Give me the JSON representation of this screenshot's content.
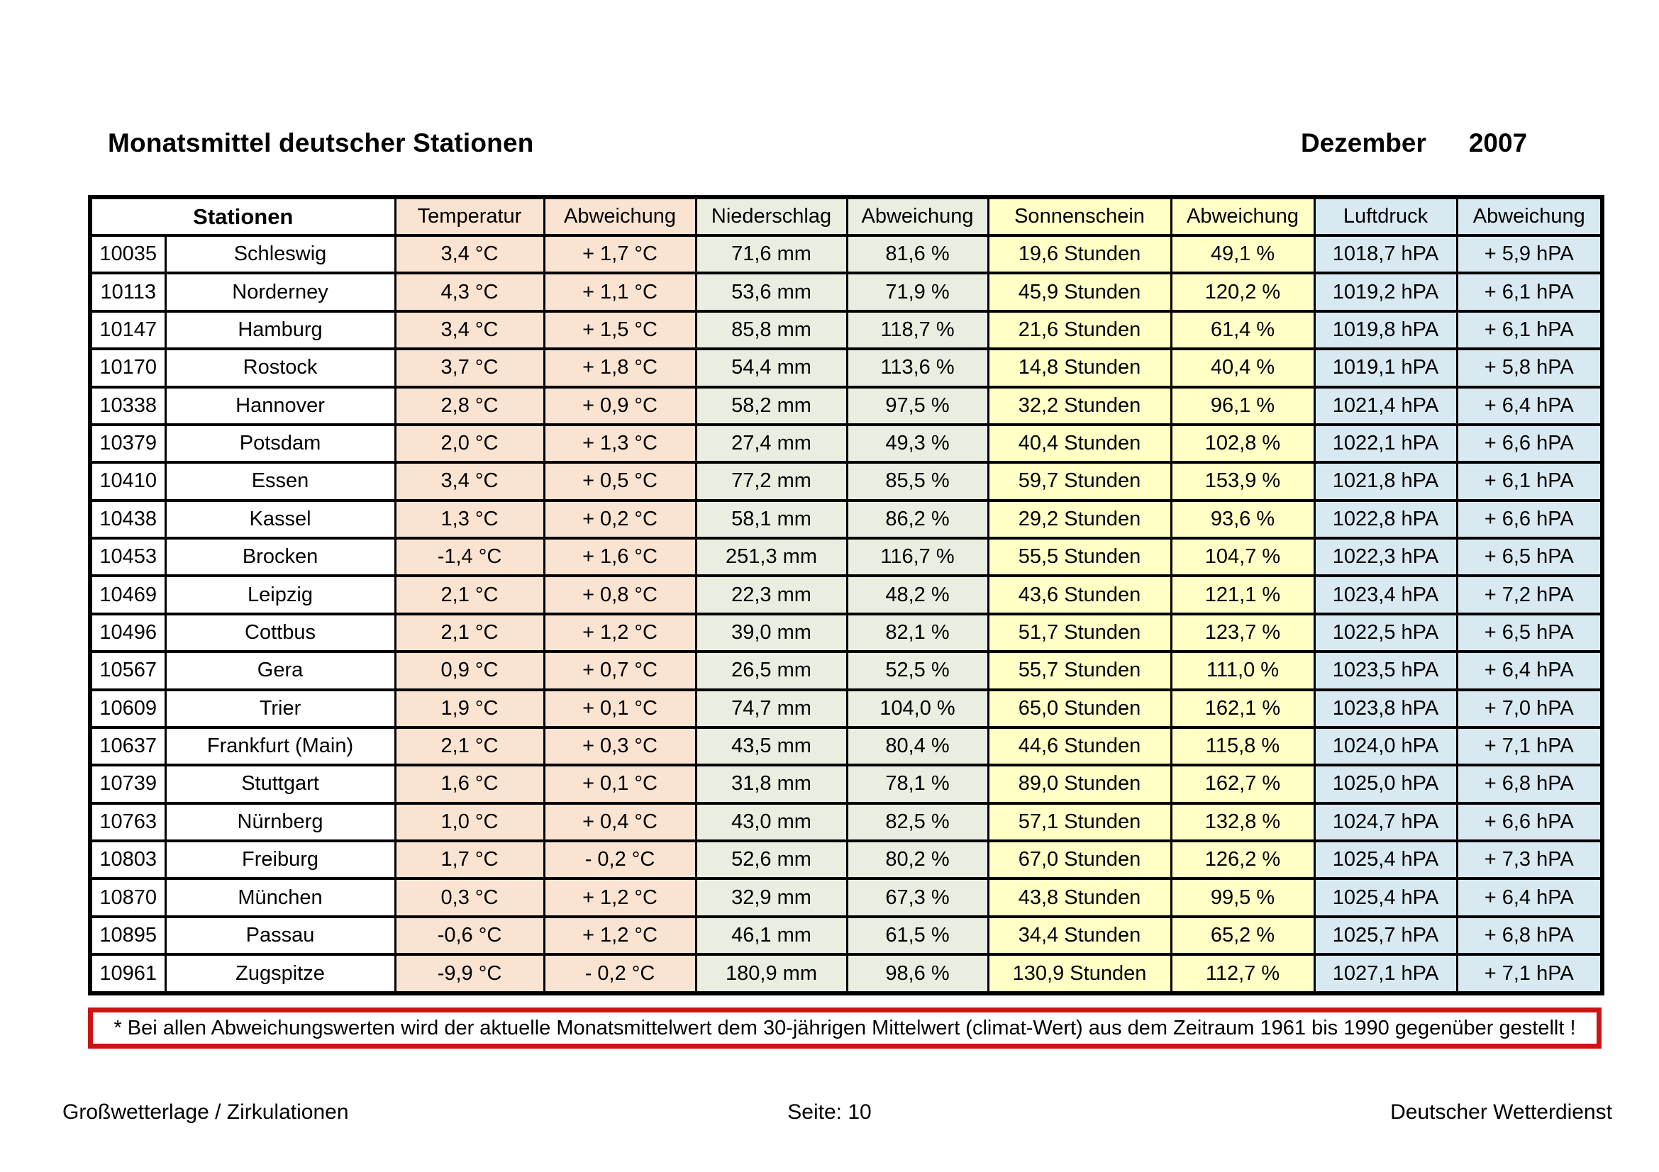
{
  "title": "Monatsmittel deutscher Stationen",
  "period": {
    "month": "Dezember",
    "year": "2007"
  },
  "colors": {
    "peach": "#fae3d1",
    "green": "#e9eee0",
    "yellow": "#ffffc6",
    "blue": "#d8e9f2",
    "red": "#cc1414"
  },
  "table": {
    "header": {
      "stationen": "Stationen",
      "columns": [
        "Temperatur",
        "Abweichung",
        "Niederschlag",
        "Abweichung",
        "Sonnenschein",
        "Abweichung",
        "Luftdruck",
        "Abweichung"
      ]
    },
    "fields": [
      "id",
      "name",
      "temperatur",
      "temperatur_abw",
      "niederschlag",
      "niederschlag_abw",
      "sonnenschein",
      "sonnenschein_abw",
      "luftdruck",
      "luftdruck_abw"
    ],
    "rows": [
      {
        "id": "10035",
        "name": "Schleswig",
        "temperatur": "3,4 °C",
        "temperatur_abw": "+ 1,7 °C",
        "niederschlag": "71,6 mm",
        "niederschlag_abw": "81,6 %",
        "sonnenschein": "19,6 Stunden",
        "sonnenschein_abw": "49,1 %",
        "luftdruck": "1018,7 hPA",
        "luftdruck_abw": "+ 5,9 hPA"
      },
      {
        "id": "10113",
        "name": "Norderney",
        "temperatur": "4,3 °C",
        "temperatur_abw": "+ 1,1 °C",
        "niederschlag": "53,6 mm",
        "niederschlag_abw": "71,9 %",
        "sonnenschein": "45,9 Stunden",
        "sonnenschein_abw": "120,2 %",
        "luftdruck": "1019,2 hPA",
        "luftdruck_abw": "+ 6,1 hPA"
      },
      {
        "id": "10147",
        "name": "Hamburg",
        "temperatur": "3,4 °C",
        "temperatur_abw": "+ 1,5 °C",
        "niederschlag": "85,8 mm",
        "niederschlag_abw": "118,7 %",
        "sonnenschein": "21,6 Stunden",
        "sonnenschein_abw": "61,4 %",
        "luftdruck": "1019,8 hPA",
        "luftdruck_abw": "+ 6,1 hPA"
      },
      {
        "id": "10170",
        "name": "Rostock",
        "temperatur": "3,7 °C",
        "temperatur_abw": "+ 1,8 °C",
        "niederschlag": "54,4 mm",
        "niederschlag_abw": "113,6 %",
        "sonnenschein": "14,8 Stunden",
        "sonnenschein_abw": "40,4 %",
        "luftdruck": "1019,1 hPA",
        "luftdruck_abw": "+ 5,8 hPA"
      },
      {
        "id": "10338",
        "name": "Hannover",
        "temperatur": "2,8 °C",
        "temperatur_abw": "+ 0,9 °C",
        "niederschlag": "58,2 mm",
        "niederschlag_abw": "97,5 %",
        "sonnenschein": "32,2 Stunden",
        "sonnenschein_abw": "96,1 %",
        "luftdruck": "1021,4 hPA",
        "luftdruck_abw": "+ 6,4 hPA"
      },
      {
        "id": "10379",
        "name": "Potsdam",
        "temperatur": "2,0 °C",
        "temperatur_abw": "+ 1,3 °C",
        "niederschlag": "27,4 mm",
        "niederschlag_abw": "49,3 %",
        "sonnenschein": "40,4 Stunden",
        "sonnenschein_abw": "102,8 %",
        "luftdruck": "1022,1 hPA",
        "luftdruck_abw": "+ 6,6 hPA"
      },
      {
        "id": "10410",
        "name": "Essen",
        "temperatur": "3,4 °C",
        "temperatur_abw": "+ 0,5 °C",
        "niederschlag": "77,2 mm",
        "niederschlag_abw": "85,5 %",
        "sonnenschein": "59,7 Stunden",
        "sonnenschein_abw": "153,9 %",
        "luftdruck": "1021,8 hPA",
        "luftdruck_abw": "+ 6,1 hPA"
      },
      {
        "id": "10438",
        "name": "Kassel",
        "temperatur": "1,3 °C",
        "temperatur_abw": "+ 0,2 °C",
        "niederschlag": "58,1 mm",
        "niederschlag_abw": "86,2 %",
        "sonnenschein": "29,2 Stunden",
        "sonnenschein_abw": "93,6 %",
        "luftdruck": "1022,8 hPA",
        "luftdruck_abw": "+ 6,6 hPA"
      },
      {
        "id": "10453",
        "name": "Brocken",
        "temperatur": "-1,4 °C",
        "temperatur_abw": "+ 1,6 °C",
        "niederschlag": "251,3 mm",
        "niederschlag_abw": "116,7 %",
        "sonnenschein": "55,5 Stunden",
        "sonnenschein_abw": "104,7 %",
        "luftdruck": "1022,3 hPA",
        "luftdruck_abw": "+ 6,5 hPA"
      },
      {
        "id": "10469",
        "name": "Leipzig",
        "temperatur": "2,1 °C",
        "temperatur_abw": "+ 0,8 °C",
        "niederschlag": "22,3 mm",
        "niederschlag_abw": "48,2 %",
        "sonnenschein": "43,6 Stunden",
        "sonnenschein_abw": "121,1 %",
        "luftdruck": "1023,4 hPA",
        "luftdruck_abw": "+ 7,2 hPA"
      },
      {
        "id": "10496",
        "name": "Cottbus",
        "temperatur": "2,1 °C",
        "temperatur_abw": "+ 1,2 °C",
        "niederschlag": "39,0 mm",
        "niederschlag_abw": "82,1 %",
        "sonnenschein": "51,7 Stunden",
        "sonnenschein_abw": "123,7 %",
        "luftdruck": "1022,5 hPA",
        "luftdruck_abw": "+ 6,5 hPA"
      },
      {
        "id": "10567",
        "name": "Gera",
        "temperatur": "0,9 °C",
        "temperatur_abw": "+ 0,7 °C",
        "niederschlag": "26,5 mm",
        "niederschlag_abw": "52,5 %",
        "sonnenschein": "55,7 Stunden",
        "sonnenschein_abw": "111,0 %",
        "luftdruck": "1023,5 hPA",
        "luftdruck_abw": "+ 6,4 hPA"
      },
      {
        "id": "10609",
        "name": "Trier",
        "temperatur": "1,9 °C",
        "temperatur_abw": "+ 0,1 °C",
        "niederschlag": "74,7 mm",
        "niederschlag_abw": "104,0 %",
        "sonnenschein": "65,0 Stunden",
        "sonnenschein_abw": "162,1 %",
        "luftdruck": "1023,8 hPA",
        "luftdruck_abw": "+ 7,0 hPA"
      },
      {
        "id": "10637",
        "name": "Frankfurt (Main)",
        "temperatur": "2,1 °C",
        "temperatur_abw": "+ 0,3 °C",
        "niederschlag": "43,5 mm",
        "niederschlag_abw": "80,4 %",
        "sonnenschein": "44,6 Stunden",
        "sonnenschein_abw": "115,8 %",
        "luftdruck": "1024,0 hPA",
        "luftdruck_abw": "+ 7,1 hPA"
      },
      {
        "id": "10739",
        "name": "Stuttgart",
        "temperatur": "1,6 °C",
        "temperatur_abw": "+ 0,1 °C",
        "niederschlag": "31,8 mm",
        "niederschlag_abw": "78,1 %",
        "sonnenschein": "89,0 Stunden",
        "sonnenschein_abw": "162,7 %",
        "luftdruck": "1025,0 hPA",
        "luftdruck_abw": "+ 6,8 hPA"
      },
      {
        "id": "10763",
        "name": "Nürnberg",
        "temperatur": "1,0 °C",
        "temperatur_abw": "+ 0,4 °C",
        "niederschlag": "43,0 mm",
        "niederschlag_abw": "82,5 %",
        "sonnenschein": "57,1 Stunden",
        "sonnenschein_abw": "132,8 %",
        "luftdruck": "1024,7 hPA",
        "luftdruck_abw": "+ 6,6 hPA"
      },
      {
        "id": "10803",
        "name": "Freiburg",
        "temperatur": "1,7 °C",
        "temperatur_abw": "- 0,2 °C",
        "niederschlag": "52,6 mm",
        "niederschlag_abw": "80,2 %",
        "sonnenschein": "67,0 Stunden",
        "sonnenschein_abw": "126,2 %",
        "luftdruck": "1025,4 hPA",
        "luftdruck_abw": "+ 7,3 hPA"
      },
      {
        "id": "10870",
        "name": "München",
        "temperatur": "0,3 °C",
        "temperatur_abw": "+ 1,2 °C",
        "niederschlag": "32,9 mm",
        "niederschlag_abw": "67,3 %",
        "sonnenschein": "43,8 Stunden",
        "sonnenschein_abw": "99,5 %",
        "luftdruck": "1025,4 hPA",
        "luftdruck_abw": "+ 6,4 hPA"
      },
      {
        "id": "10895",
        "name": "Passau",
        "temperatur": "-0,6 °C",
        "temperatur_abw": "+ 1,2 °C",
        "niederschlag": "46,1 mm",
        "niederschlag_abw": "61,5 %",
        "sonnenschein": "34,4 Stunden",
        "sonnenschein_abw": "65,2 %",
        "luftdruck": "1025,7 hPA",
        "luftdruck_abw": "+ 6,8 hPA"
      },
      {
        "id": "10961",
        "name": "Zugspitze",
        "temperatur": "-9,9 °C",
        "temperatur_abw": "- 0,2 °C",
        "niederschlag": "180,9 mm",
        "niederschlag_abw": "98,6 %",
        "sonnenschein": "130,9 Stunden",
        "sonnenschein_abw": "112,7 %",
        "luftdruck": "1027,1 hPA",
        "luftdruck_abw": "+ 7,1 hPA"
      }
    ]
  },
  "note": {
    "text": "* Bei allen Abweichungswerten wird der aktuelle Monatsmittelwert dem 30-jährigen Mittelwert (climat-Wert) aus dem Zeitraum 1961 bis 1990 gegenüber gestellt !"
  },
  "footer": {
    "left": "Großwetterlage / Zirkulationen",
    "center": "Seite: 10",
    "right": "Deutscher Wetterdienst"
  }
}
